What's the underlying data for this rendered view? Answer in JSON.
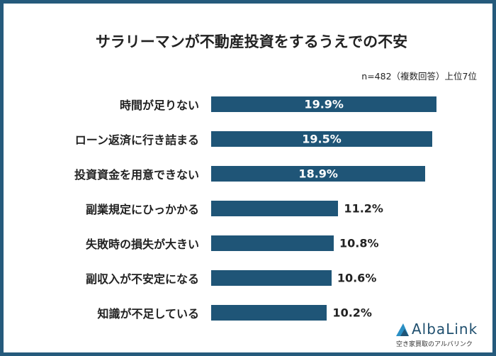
{
  "chart_data": {
    "type": "bar",
    "orientation": "horizontal",
    "title": "サラリーマンが不動産投資をするうえでの不安",
    "note": "n=482（複数回答）上位7位",
    "categories": [
      "時間が足りない",
      "ローン返済に行き詰まる",
      "投資資金を用意できない",
      "副業規定にひっかかる",
      "失敗時の損失が大きい",
      "副収入が不安定になる",
      "知識が不足している"
    ],
    "values": [
      19.9,
      19.5,
      18.9,
      11.2,
      10.8,
      10.6,
      10.2
    ],
    "data_labels": [
      "19.9%",
      "19.5%",
      "18.9%",
      "11.2%",
      "10.8%",
      "10.6%",
      "10.2%"
    ],
    "bar_color": "#1f5577",
    "grid": false
  },
  "logo": {
    "name": "AlbaLink",
    "tagline": "空き家買取のアルバリンク"
  }
}
